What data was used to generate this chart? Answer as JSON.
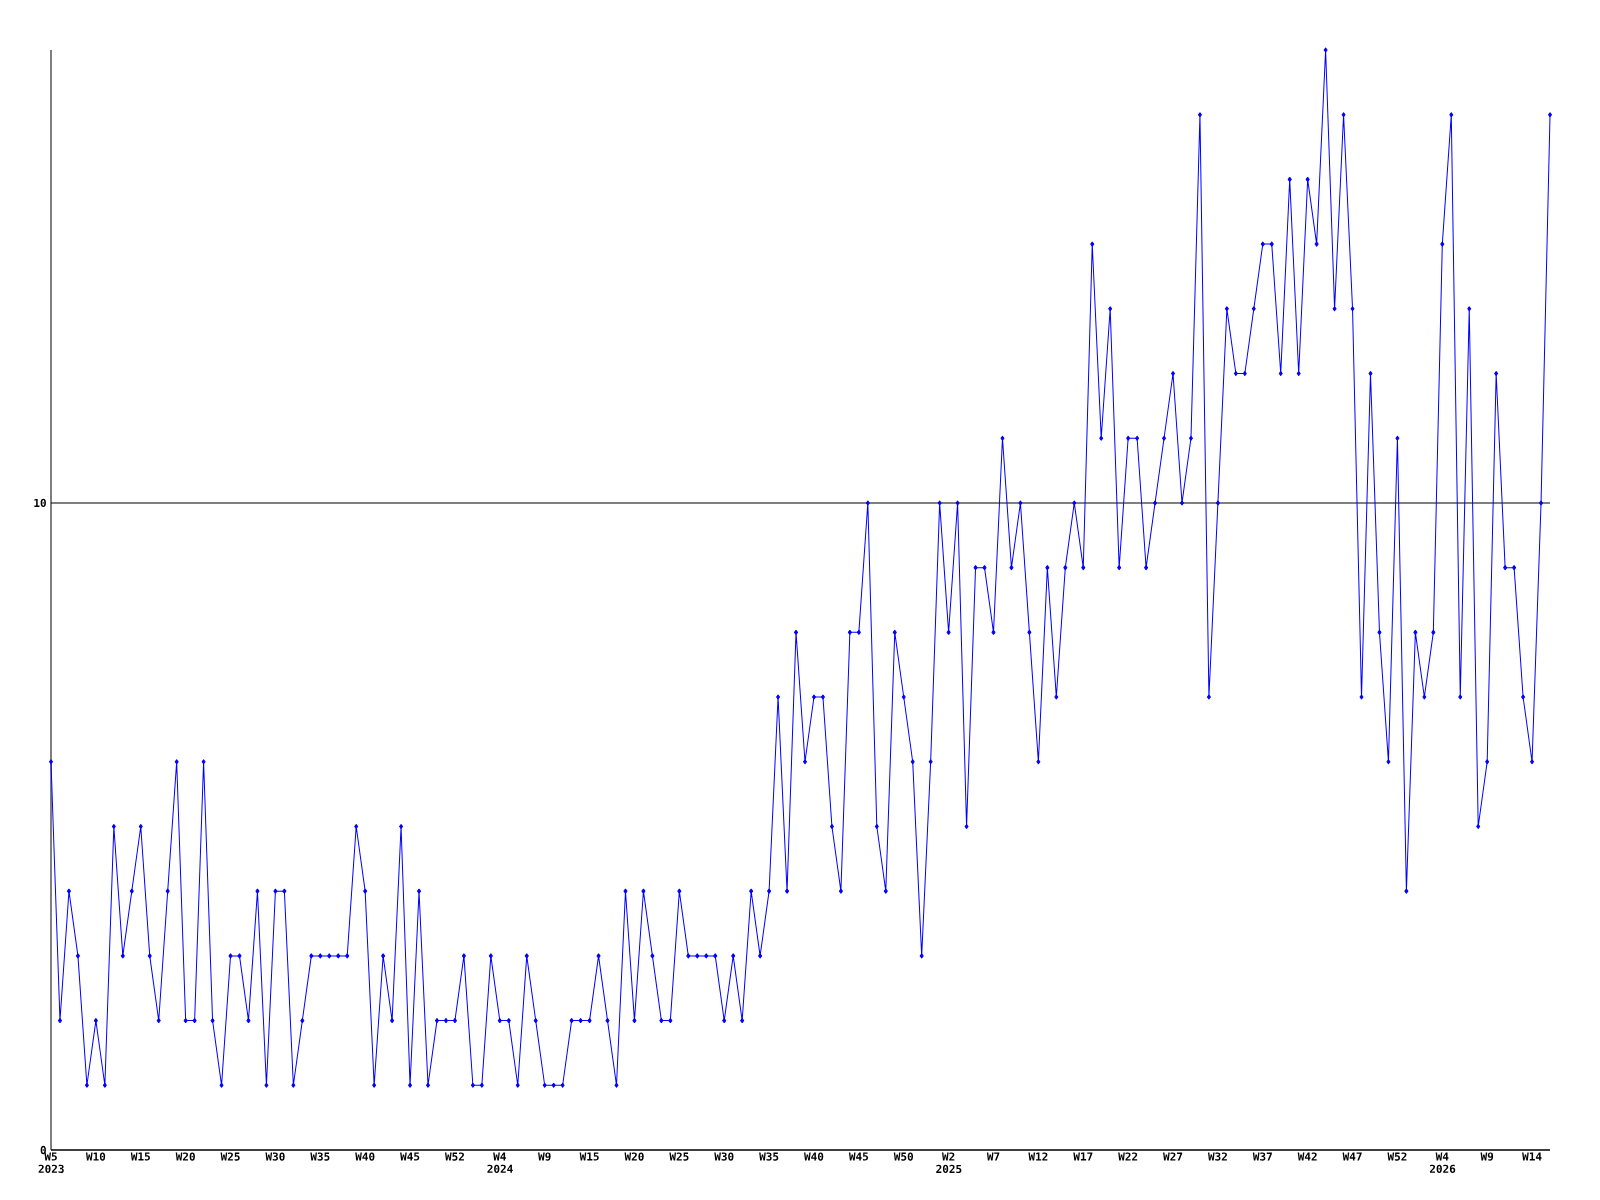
{
  "chart_data": {
    "type": "line",
    "categories": [
      "W5 2023",
      null,
      null,
      null,
      null,
      "W10",
      null,
      null,
      null,
      null,
      "W15",
      null,
      null,
      null,
      null,
      "W20",
      null,
      null,
      null,
      null,
      "W25",
      null,
      null,
      null,
      null,
      "W30",
      null,
      null,
      null,
      null,
      "W35",
      null,
      null,
      null,
      null,
      "W40",
      null,
      null,
      null,
      null,
      "W45",
      null,
      null,
      null,
      null,
      "W52",
      null,
      null,
      null,
      null,
      "W4 2024",
      null,
      null,
      null,
      null,
      "W9",
      null,
      null,
      null,
      null,
      "W15",
      null,
      null,
      null,
      null,
      "W20",
      null,
      null,
      null,
      null,
      "W25",
      null,
      null,
      null,
      null,
      "W30",
      null,
      null,
      null,
      null,
      "W35",
      null,
      null,
      null,
      null,
      "W40",
      null,
      null,
      null,
      null,
      "W45",
      null,
      null,
      null,
      null,
      "W50",
      null,
      null,
      null,
      null,
      "W2 2025",
      null,
      null,
      null,
      null,
      "W7",
      null,
      null,
      null,
      null,
      "W12",
      null,
      null,
      null,
      null,
      "W17",
      null,
      null,
      null,
      null,
      "W22",
      null,
      null,
      null,
      null,
      "W27",
      null,
      null,
      null,
      null,
      "W32",
      null,
      null,
      null,
      null,
      "W37",
      null,
      null,
      null,
      null,
      "W42",
      null,
      null,
      null,
      null,
      "W47",
      null,
      null,
      null,
      null,
      "W52",
      null,
      null,
      null,
      null,
      "W4 2026",
      null,
      null,
      null,
      null,
      "W9",
      null,
      null,
      null,
      null,
      "W14",
      null,
      null
    ],
    "values": [
      6,
      2,
      4,
      3,
      1,
      2,
      1,
      5,
      3,
      4,
      5,
      3,
      2,
      4,
      6,
      2,
      2,
      6,
      2,
      1,
      3,
      3,
      2,
      4,
      1,
      4,
      4,
      1,
      2,
      3,
      3,
      3,
      3,
      3,
      5,
      4,
      1,
      3,
      2,
      5,
      1,
      4,
      1,
      2,
      2,
      2,
      3,
      1,
      1,
      3,
      2,
      2,
      1,
      3,
      2,
      1,
      1,
      1,
      2,
      2,
      2,
      3,
      2,
      1,
      4,
      2,
      4,
      3,
      2,
      2,
      4,
      3,
      3,
      3,
      3,
      2,
      3,
      2,
      4,
      3,
      4,
      7,
      4,
      8,
      6,
      7,
      7,
      5,
      4,
      8,
      8,
      10,
      5,
      4,
      8,
      7,
      6,
      3,
      6,
      10,
      8,
      10,
      5,
      9,
      9,
      8,
      11,
      9,
      10,
      8,
      6,
      9,
      7,
      9,
      10,
      9,
      14,
      11,
      13,
      9,
      11,
      11,
      9,
      10,
      11,
      12,
      10,
      11,
      16,
      7,
      10,
      13,
      12,
      12,
      13,
      14,
      14,
      12,
      15,
      12,
      15,
      14,
      17,
      13,
      16,
      13,
      7,
      12,
      8,
      6,
      11,
      4,
      8,
      7,
      8,
      14,
      16,
      7,
      13,
      5,
      6,
      12,
      9,
      9,
      7,
      6,
      10,
      16
    ],
    "color": "#0000ff",
    "ylim": [
      0,
      17
    ],
    "yticks": [
      0,
      10
    ],
    "grid": "y",
    "marker": "diamond",
    "line_style": "solid"
  }
}
